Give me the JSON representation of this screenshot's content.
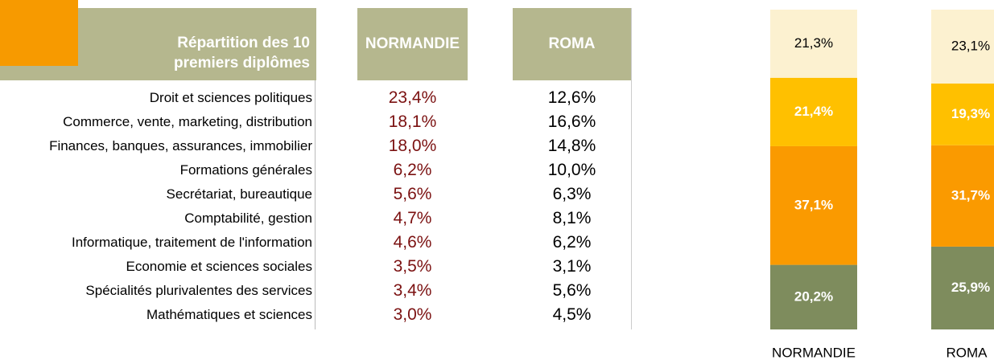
{
  "table": {
    "header": [
      "Répartition des 10 premiers diplômes",
      "NORMANDIE",
      "ROMA"
    ],
    "rows": [
      [
        "Droit et sciences politiques",
        "23,4%",
        "12,6%"
      ],
      [
        "Commerce, vente, marketing, distribution",
        "18,1%",
        "16,6%"
      ],
      [
        "Finances, banques, assurances, immobilier",
        "18,0%",
        "14,8%"
      ],
      [
        "Formations générales",
        "6,2%",
        "10,0%"
      ],
      [
        "Secrétariat, bureautique",
        "5,6%",
        "6,3%"
      ],
      [
        "Comptabilité, gestion",
        "4,7%",
        "8,1%"
      ],
      [
        "Informatique, traitement de l'information",
        "4,6%",
        "6,2%"
      ],
      [
        "Economie et sciences sociales",
        "3,5%",
        "3,1%"
      ],
      [
        "Spécialités plurivalentes des services",
        "3,4%",
        "5,6%"
      ],
      [
        "Mathématiques et sciences",
        "3,0%",
        "4,5%"
      ]
    ]
  },
  "chart_data": {
    "type": "stacked_bar",
    "categories": [
      "NORMANDIE",
      "ROMA"
    ],
    "ylim": [
      0,
      100
    ],
    "series": [
      {
        "color": "#7e8c5d",
        "values": [
          20.2,
          25.9
        ],
        "value_labels": [
          "20,2%",
          "25,9%"
        ]
      },
      {
        "color": "#fa9a00",
        "values": [
          37.1,
          31.7
        ],
        "value_labels": [
          "37,1%",
          "31,7%"
        ]
      },
      {
        "color": "#ffc000",
        "values": [
          21.4,
          19.3
        ],
        "value_labels": [
          "21,4%",
          "19,3%"
        ]
      },
      {
        "color": "#fcf1d0",
        "values": [
          21.3,
          23.1
        ],
        "value_labels": [
          "21,3%",
          "23,1%"
        ]
      }
    ]
  }
}
